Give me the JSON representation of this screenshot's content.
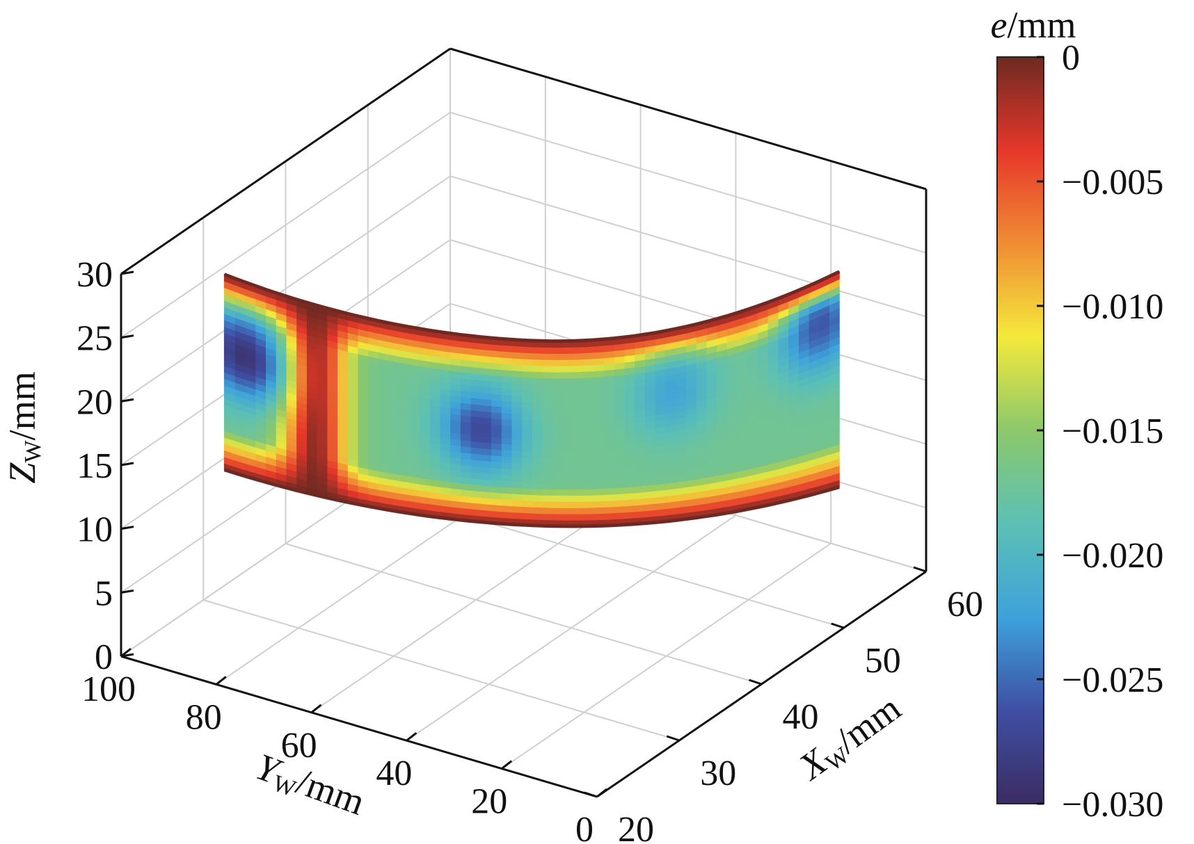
{
  "chart_data": {
    "type": "surface3d",
    "title": "",
    "x_axis": {
      "label": "X",
      "label_sub": "W",
      "label_unit": "/mm",
      "range": [
        20,
        60
      ],
      "ticks": [
        "20",
        "30",
        "40",
        "50",
        "60"
      ]
    },
    "y_axis": {
      "label": "Y",
      "label_sub": "W",
      "label_unit": "/mm",
      "range": [
        0,
        100
      ],
      "ticks": [
        "0",
        "20",
        "40",
        "60",
        "80",
        "100"
      ]
    },
    "z_axis": {
      "label": "Z",
      "label_sub": "W",
      "label_unit": "/mm",
      "range": [
        0,
        30
      ],
      "ticks": [
        "0",
        "5",
        "10",
        "15",
        "20",
        "25",
        "30"
      ]
    },
    "colorbar": {
      "label": "e",
      "label_unit": "/mm",
      "range": [
        -0.03,
        0
      ],
      "ticks": [
        "0",
        "−0.005",
        "−0.010",
        "−0.015",
        "−0.020",
        "−0.025",
        "−0.030"
      ],
      "tick_values": [
        0,
        -0.005,
        -0.01,
        -0.015,
        -0.02,
        -0.025,
        -0.03
      ],
      "colormap": [
        "#3b2c63",
        "#3f4fa3",
        "#3ea2db",
        "#5cc0b5",
        "#8cc86b",
        "#f4e93b",
        "#f08c34",
        "#e6372a",
        "#6e2a22"
      ]
    },
    "grid": true,
    "surface": {
      "description_values": {
        "edge_error": 0,
        "minima": [
          {
            "y": 95,
            "z": 17,
            "e": -0.029
          },
          {
            "y": 58,
            "z": 15,
            "e": -0.027
          },
          {
            "y": 5,
            "z": 20,
            "e": -0.026
          },
          {
            "y": 28,
            "z": 18,
            "e": -0.022
          }
        ],
        "center_band_error": -0.017
      }
    }
  }
}
